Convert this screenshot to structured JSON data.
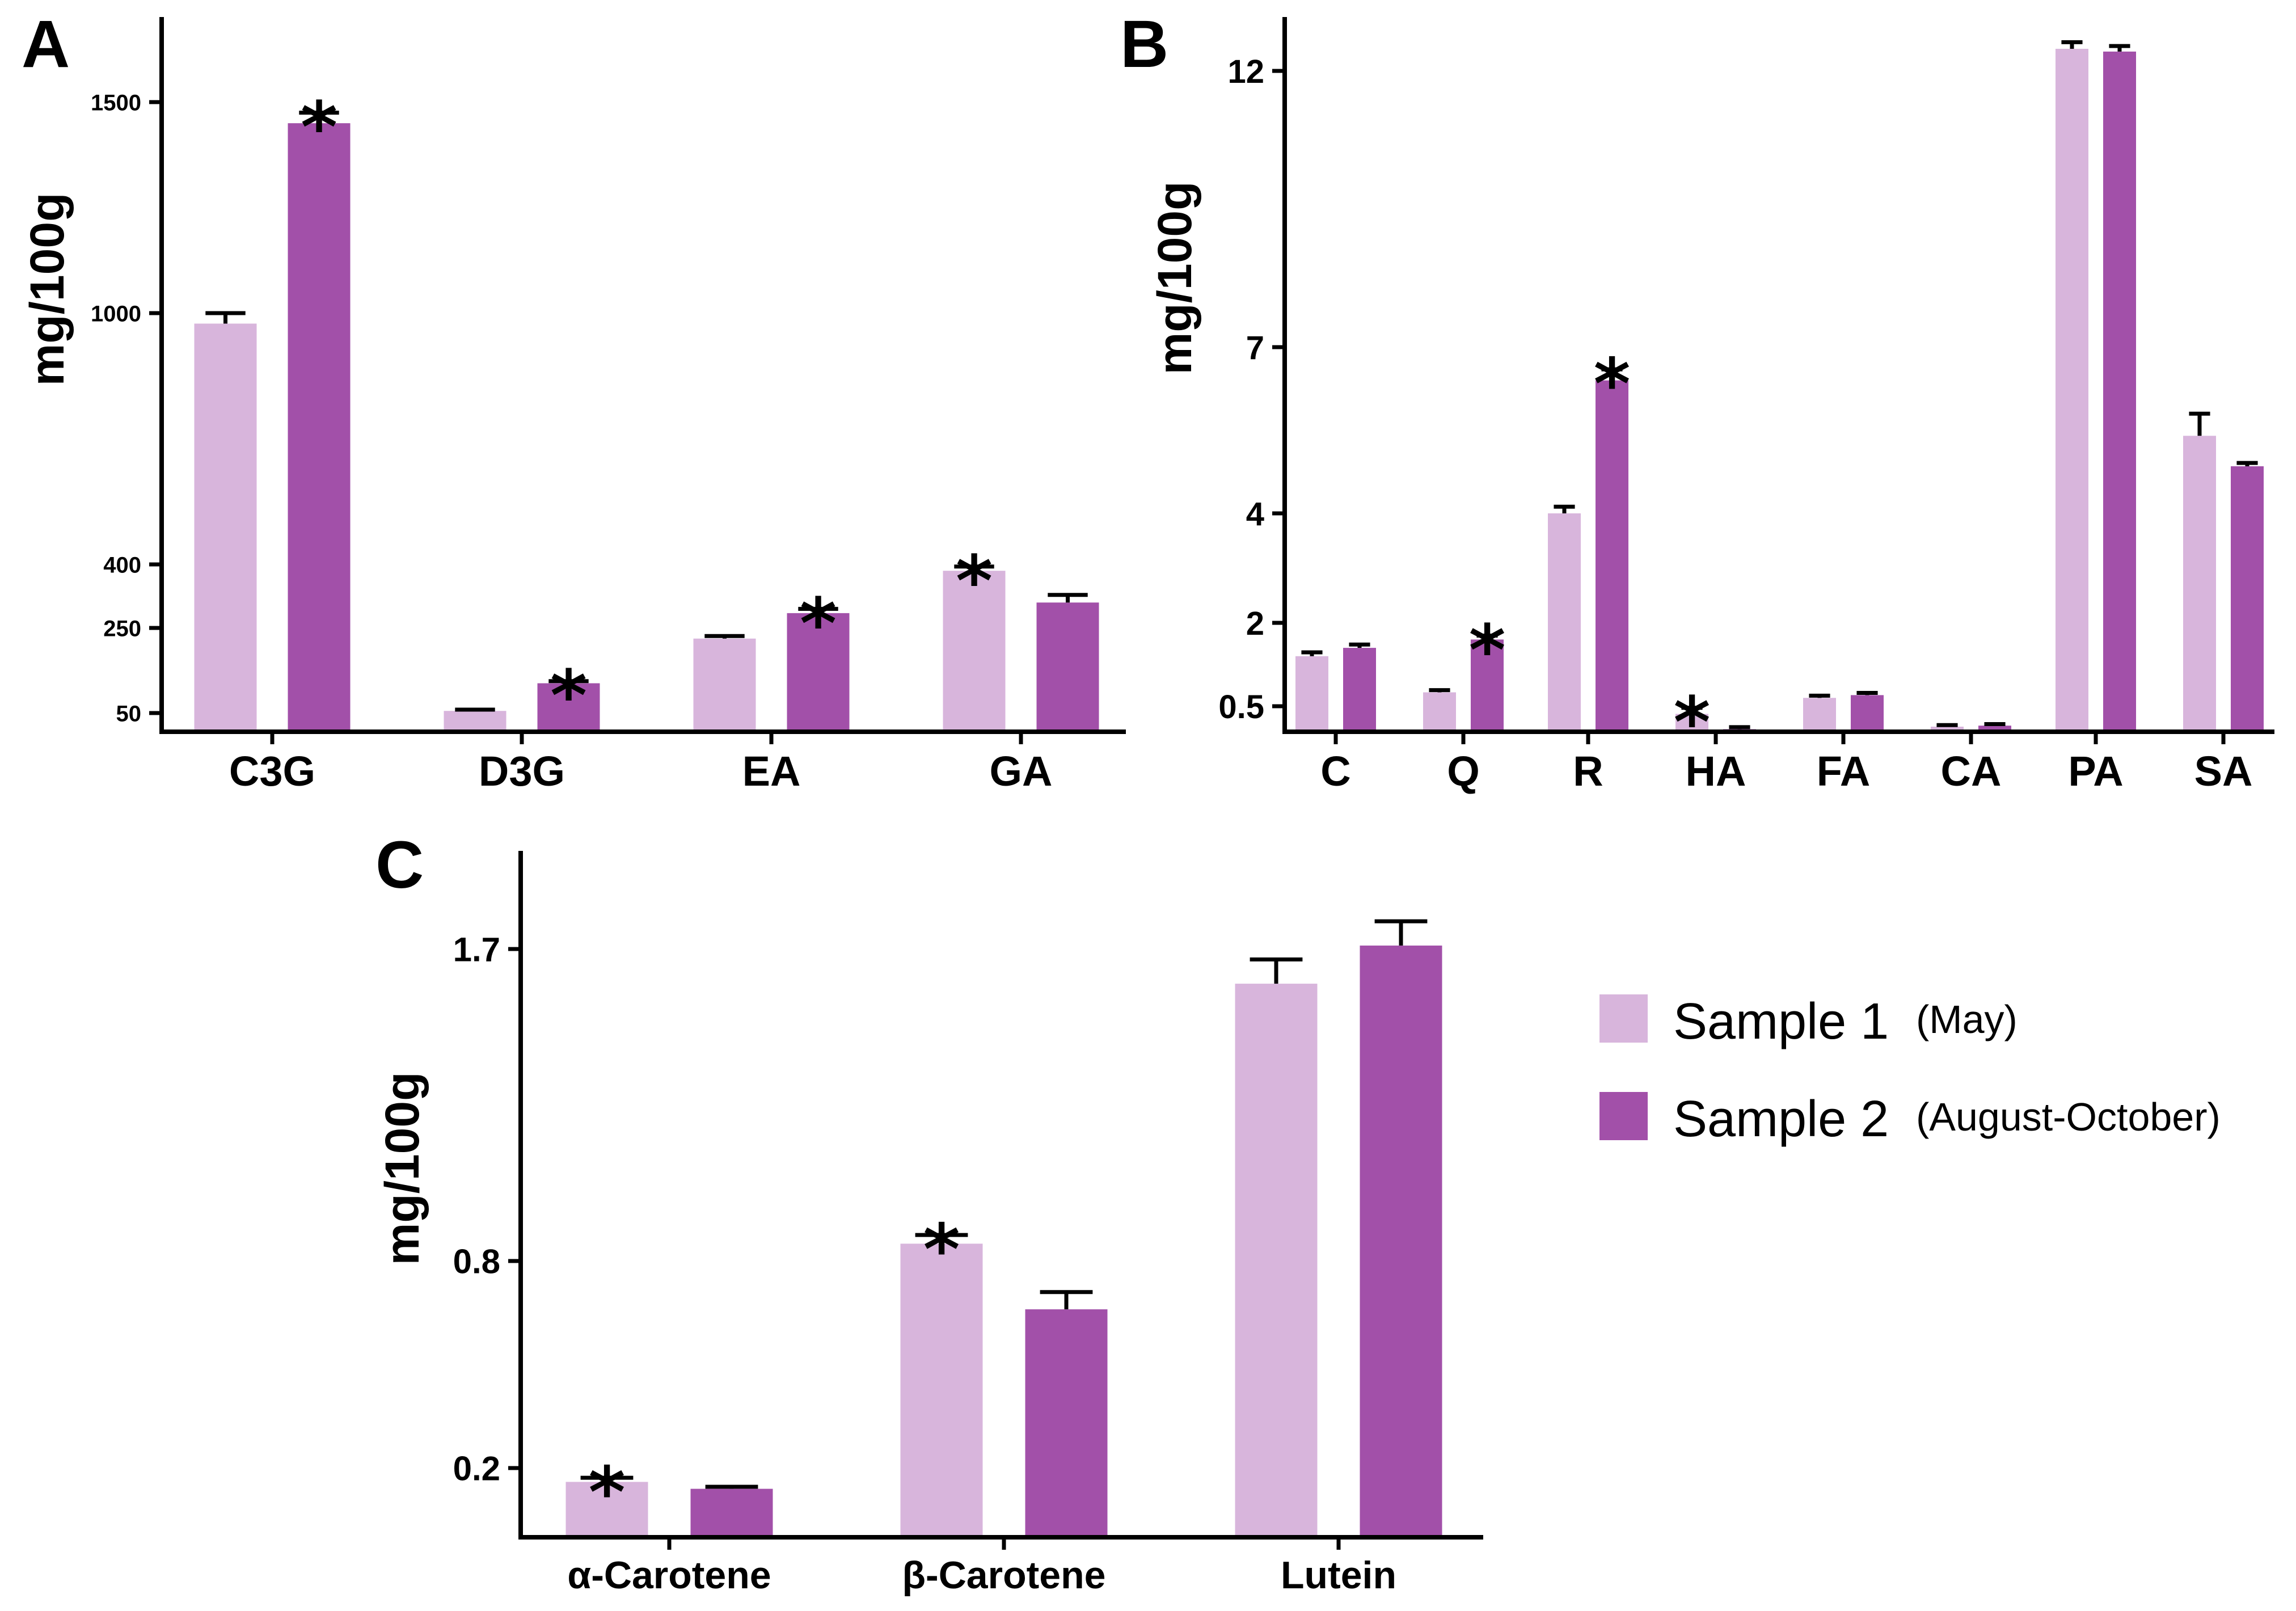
{
  "colors": {
    "sample1": "#d8b5dc",
    "sample2": "#a250a9",
    "axis": "#000000"
  },
  "legend": {
    "series": [
      {
        "name": "Sample 1",
        "period": "(May)",
        "color": "#d8b5dc"
      },
      {
        "name": "Sample 2",
        "period": "(August-October)",
        "color": "#a250a9"
      }
    ]
  },
  "chart_data": [
    {
      "panel": "A",
      "type": "bar",
      "ylabel": "mg/100g",
      "ticks": [
        50,
        250,
        400,
        1000,
        1500
      ],
      "categories": [
        "C3G",
        "D3G",
        "EA",
        "GA"
      ],
      "series": [
        {
          "name": "Sample 1",
          "values": [
            975,
            55,
            225,
            385
          ],
          "errors": [
            25,
            3,
            6,
            10
          ],
          "significant": [
            false,
            false,
            false,
            true
          ]
        },
        {
          "name": "Sample 2",
          "values": [
            1450,
            120,
            285,
            310
          ],
          "errors": [
            25,
            5,
            10,
            18
          ],
          "significant": [
            true,
            true,
            true,
            false
          ]
        }
      ]
    },
    {
      "panel": "B",
      "type": "bar",
      "ylabel": "mg/100g",
      "ticks": [
        0.5,
        2,
        4,
        7,
        12
      ],
      "categories": [
        "C",
        "Q",
        "R",
        "HA",
        "FA",
        "CA",
        "PA",
        "SA"
      ],
      "series": [
        {
          "name": "Sample 1",
          "values": [
            1.4,
            0.75,
            4.0,
            0.35,
            0.65,
            0.1,
            12.4,
            5.4
          ],
          "errors": [
            0.07,
            0.04,
            0.12,
            0.12,
            0.04,
            0.03,
            0.12,
            0.4
          ],
          "significant": [
            false,
            false,
            false,
            true,
            false,
            false,
            false,
            false
          ]
        },
        {
          "name": "Sample 2",
          "values": [
            1.55,
            1.7,
            6.4,
            0.05,
            0.7,
            0.12,
            12.35,
            4.85
          ],
          "errors": [
            0.06,
            0.07,
            0.2,
            0.04,
            0.04,
            0.03,
            0.1,
            0.06
          ],
          "significant": [
            false,
            true,
            true,
            false,
            false,
            false,
            false,
            false
          ]
        }
      ]
    },
    {
      "panel": "C",
      "type": "bar",
      "ylabel": "mg/100g",
      "ticks": [
        0.2,
        0.8,
        1.7
      ],
      "categories": [
        "α-Carotene",
        "β-Carotene",
        "Lutein"
      ],
      "series": [
        {
          "name": "Sample 1",
          "values": [
            0.16,
            0.85,
            1.6
          ],
          "errors": [
            0.012,
            0.025,
            0.07
          ],
          "significant": [
            true,
            true,
            false
          ]
        },
        {
          "name": "Sample 2",
          "values": [
            0.14,
            0.66,
            1.71
          ],
          "errors": [
            0.006,
            0.05,
            0.07
          ],
          "significant": [
            false,
            false,
            false
          ]
        }
      ]
    }
  ]
}
